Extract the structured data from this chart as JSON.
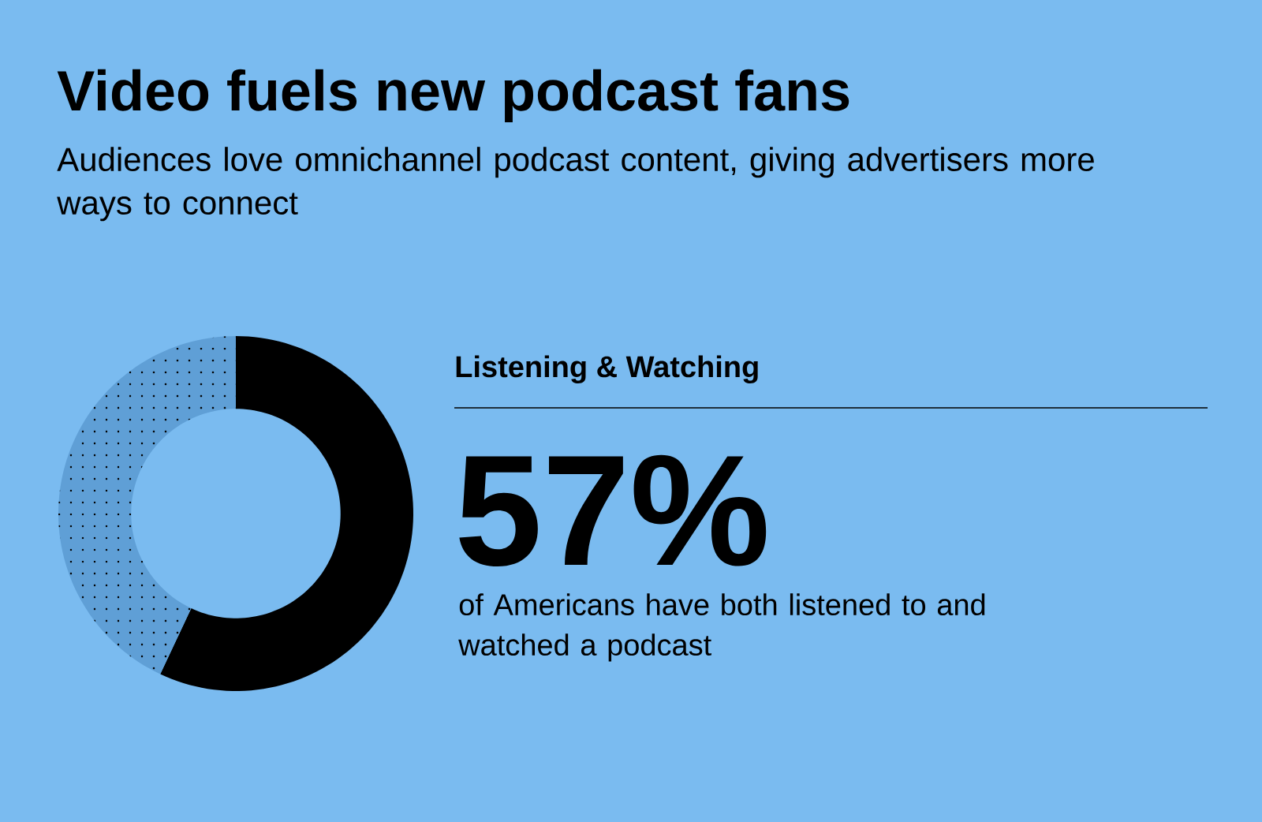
{
  "chart_data": {
    "type": "donut",
    "title": "Video fuels new podcast fans",
    "subtitle": "Audiences love omnichannel podcast content, giving advertisers more ways to connect",
    "categories": [
      "Listening & Watching",
      null
    ],
    "values": [
      57,
      43
    ],
    "colors": [
      "#000000",
      "#5f9fd6"
    ],
    "value_labels": [
      "57%",
      null
    ],
    "annotations": [
      "of Americans have both listened to and watched a podcast"
    ]
  }
}
